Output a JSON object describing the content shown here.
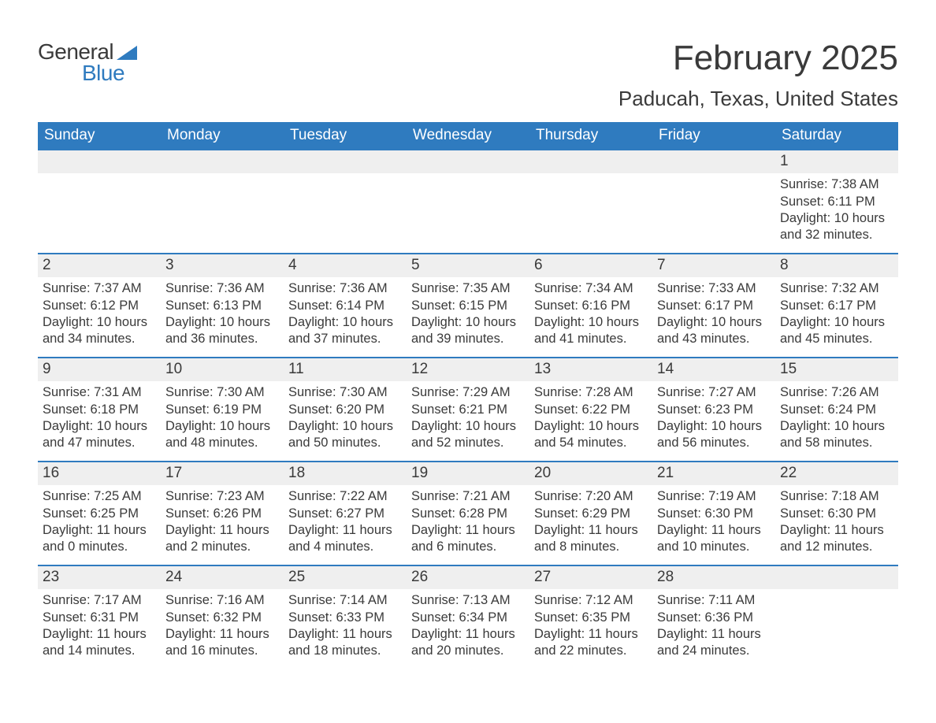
{
  "brand": {
    "word1": "General",
    "word2": "Blue",
    "sail_color": "#2f7bbf"
  },
  "header": {
    "month_title": "February 2025",
    "location": "Paducah, Texas, United States"
  },
  "colors": {
    "header_bg": "#2f7bbf",
    "daynum_bg": "#efefef",
    "text": "#3a3a3a",
    "accent": "#2f7bbf"
  },
  "weekdays": [
    "Sunday",
    "Monday",
    "Tuesday",
    "Wednesday",
    "Thursday",
    "Friday",
    "Saturday"
  ],
  "weeks": [
    [
      {
        "n": "",
        "sr": "",
        "ss": "",
        "dl": ""
      },
      {
        "n": "",
        "sr": "",
        "ss": "",
        "dl": ""
      },
      {
        "n": "",
        "sr": "",
        "ss": "",
        "dl": ""
      },
      {
        "n": "",
        "sr": "",
        "ss": "",
        "dl": ""
      },
      {
        "n": "",
        "sr": "",
        "ss": "",
        "dl": ""
      },
      {
        "n": "",
        "sr": "",
        "ss": "",
        "dl": ""
      },
      {
        "n": "1",
        "sr": "Sunrise: 7:38 AM",
        "ss": "Sunset: 6:11 PM",
        "dl": "Daylight: 10 hours and 32 minutes."
      }
    ],
    [
      {
        "n": "2",
        "sr": "Sunrise: 7:37 AM",
        "ss": "Sunset: 6:12 PM",
        "dl": "Daylight: 10 hours and 34 minutes."
      },
      {
        "n": "3",
        "sr": "Sunrise: 7:36 AM",
        "ss": "Sunset: 6:13 PM",
        "dl": "Daylight: 10 hours and 36 minutes."
      },
      {
        "n": "4",
        "sr": "Sunrise: 7:36 AM",
        "ss": "Sunset: 6:14 PM",
        "dl": "Daylight: 10 hours and 37 minutes."
      },
      {
        "n": "5",
        "sr": "Sunrise: 7:35 AM",
        "ss": "Sunset: 6:15 PM",
        "dl": "Daylight: 10 hours and 39 minutes."
      },
      {
        "n": "6",
        "sr": "Sunrise: 7:34 AM",
        "ss": "Sunset: 6:16 PM",
        "dl": "Daylight: 10 hours and 41 minutes."
      },
      {
        "n": "7",
        "sr": "Sunrise: 7:33 AM",
        "ss": "Sunset: 6:17 PM",
        "dl": "Daylight: 10 hours and 43 minutes."
      },
      {
        "n": "8",
        "sr": "Sunrise: 7:32 AM",
        "ss": "Sunset: 6:17 PM",
        "dl": "Daylight: 10 hours and 45 minutes."
      }
    ],
    [
      {
        "n": "9",
        "sr": "Sunrise: 7:31 AM",
        "ss": "Sunset: 6:18 PM",
        "dl": "Daylight: 10 hours and 47 minutes."
      },
      {
        "n": "10",
        "sr": "Sunrise: 7:30 AM",
        "ss": "Sunset: 6:19 PM",
        "dl": "Daylight: 10 hours and 48 minutes."
      },
      {
        "n": "11",
        "sr": "Sunrise: 7:30 AM",
        "ss": "Sunset: 6:20 PM",
        "dl": "Daylight: 10 hours and 50 minutes."
      },
      {
        "n": "12",
        "sr": "Sunrise: 7:29 AM",
        "ss": "Sunset: 6:21 PM",
        "dl": "Daylight: 10 hours and 52 minutes."
      },
      {
        "n": "13",
        "sr": "Sunrise: 7:28 AM",
        "ss": "Sunset: 6:22 PM",
        "dl": "Daylight: 10 hours and 54 minutes."
      },
      {
        "n": "14",
        "sr": "Sunrise: 7:27 AM",
        "ss": "Sunset: 6:23 PM",
        "dl": "Daylight: 10 hours and 56 minutes."
      },
      {
        "n": "15",
        "sr": "Sunrise: 7:26 AM",
        "ss": "Sunset: 6:24 PM",
        "dl": "Daylight: 10 hours and 58 minutes."
      }
    ],
    [
      {
        "n": "16",
        "sr": "Sunrise: 7:25 AM",
        "ss": "Sunset: 6:25 PM",
        "dl": "Daylight: 11 hours and 0 minutes."
      },
      {
        "n": "17",
        "sr": "Sunrise: 7:23 AM",
        "ss": "Sunset: 6:26 PM",
        "dl": "Daylight: 11 hours and 2 minutes."
      },
      {
        "n": "18",
        "sr": "Sunrise: 7:22 AM",
        "ss": "Sunset: 6:27 PM",
        "dl": "Daylight: 11 hours and 4 minutes."
      },
      {
        "n": "19",
        "sr": "Sunrise: 7:21 AM",
        "ss": "Sunset: 6:28 PM",
        "dl": "Daylight: 11 hours and 6 minutes."
      },
      {
        "n": "20",
        "sr": "Sunrise: 7:20 AM",
        "ss": "Sunset: 6:29 PM",
        "dl": "Daylight: 11 hours and 8 minutes."
      },
      {
        "n": "21",
        "sr": "Sunrise: 7:19 AM",
        "ss": "Sunset: 6:30 PM",
        "dl": "Daylight: 11 hours and 10 minutes."
      },
      {
        "n": "22",
        "sr": "Sunrise: 7:18 AM",
        "ss": "Sunset: 6:30 PM",
        "dl": "Daylight: 11 hours and 12 minutes."
      }
    ],
    [
      {
        "n": "23",
        "sr": "Sunrise: 7:17 AM",
        "ss": "Sunset: 6:31 PM",
        "dl": "Daylight: 11 hours and 14 minutes."
      },
      {
        "n": "24",
        "sr": "Sunrise: 7:16 AM",
        "ss": "Sunset: 6:32 PM",
        "dl": "Daylight: 11 hours and 16 minutes."
      },
      {
        "n": "25",
        "sr": "Sunrise: 7:14 AM",
        "ss": "Sunset: 6:33 PM",
        "dl": "Daylight: 11 hours and 18 minutes."
      },
      {
        "n": "26",
        "sr": "Sunrise: 7:13 AM",
        "ss": "Sunset: 6:34 PM",
        "dl": "Daylight: 11 hours and 20 minutes."
      },
      {
        "n": "27",
        "sr": "Sunrise: 7:12 AM",
        "ss": "Sunset: 6:35 PM",
        "dl": "Daylight: 11 hours and 22 minutes."
      },
      {
        "n": "28",
        "sr": "Sunrise: 7:11 AM",
        "ss": "Sunset: 6:36 PM",
        "dl": "Daylight: 11 hours and 24 minutes."
      },
      {
        "n": "",
        "sr": "",
        "ss": "",
        "dl": ""
      }
    ]
  ]
}
